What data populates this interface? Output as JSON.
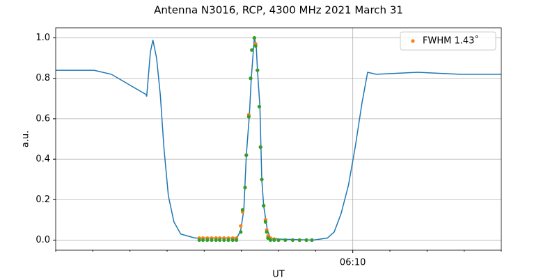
{
  "chart_data": {
    "type": "line",
    "title": "Antenna N3016, RCP, 4300 MHz 2021 March 31",
    "x_label": "UT",
    "y_label": "a.u.",
    "xlim": [
      "06:02",
      "06:14"
    ],
    "xticks": [
      "06:10"
    ],
    "xminorticks": [
      "06:02",
      "06:03",
      "06:04",
      "06:05",
      "06:06",
      "06:07",
      "06:08",
      "06:09",
      "06:11",
      "06:12",
      "06:13",
      "06:14"
    ],
    "ylim": [
      -0.05,
      1.05
    ],
    "yticks": [
      {
        "value": 0,
        "label": "0.0"
      },
      0.2,
      0.4,
      0.6,
      0.8,
      {
        "value": 1,
        "label": "1.0"
      }
    ],
    "grid": true,
    "legend": "upper right",
    "series": [
      {
        "type": "line",
        "color": "#1f77b4",
        "x": [
          "06:02:00",
          "06:03:02",
          "06:03:30",
          "06:03:58",
          "06:04:26",
          "06:04:27",
          "06:04:33",
          "06:04:37",
          "06:04:43",
          "06:04:49",
          "06:04:55",
          "06:05:02",
          "06:05:11",
          "06:05:22",
          "06:05:45",
          "06:06:53",
          "06:06:59",
          "06:07:04",
          "06:07:08",
          "06:07:13",
          "06:07:16",
          "06:07:21",
          "06:07:24",
          "06:07:26",
          "06:07:30",
          "06:07:33",
          "06:07:36",
          "06:07:40",
          "06:07:42",
          "06:07:47",
          "06:08:00",
          "06:08:56",
          "06:09:19",
          "06:09:30",
          "06:09:41",
          "06:09:53",
          "06:10:04",
          "06:10:15",
          "06:10:24",
          "06:10:38",
          "06:11:45",
          "06:12:53",
          "06:14:00"
        ],
        "values": [
          0.84,
          0.84,
          0.82,
          0.77,
          0.72,
          0.71,
          0.93,
          0.99,
          0.9,
          0.72,
          0.45,
          0.22,
          0.09,
          0.03,
          0.01,
          0.01,
          0.05,
          0.15,
          0.42,
          0.62,
          0.8,
          1.0,
          0.96,
          0.84,
          0.66,
          0.3,
          0.17,
          0.09,
          0.05,
          0.01,
          0.005,
          0,
          0.01,
          0.04,
          0.13,
          0.27,
          0.46,
          0.68,
          0.83,
          0.82,
          0.83,
          0.82,
          0.82
        ]
      },
      {
        "type": "scatter",
        "name": "FWHM 1.43˚",
        "color": "#ff7f0e",
        "x": [
          "06:05:52",
          "06:05:58",
          "06:06:05",
          "06:06:12",
          "06:06:19",
          "06:06:25",
          "06:06:32",
          "06:06:39",
          "06:06:46",
          "06:06:52",
          "06:06:59",
          "06:07:02",
          "06:07:06",
          "06:07:08",
          "06:07:12",
          "06:07:15",
          "06:07:17",
          "06:07:21",
          "06:07:23",
          "06:07:26",
          "06:07:29",
          "06:07:31",
          "06:07:33",
          "06:07:36",
          "06:07:39",
          "06:07:41",
          "06:07:43",
          "06:07:47",
          "06:07:53",
          "06:08:00",
          "06:08:11",
          "06:08:23",
          "06:08:34",
          "06:08:45",
          "06:08:54"
        ],
        "values": [
          0.01,
          0.01,
          0.01,
          0.01,
          0.01,
          0.01,
          0.01,
          0.01,
          0.01,
          0.01,
          0.07,
          0.14,
          0.26,
          0.42,
          0.62,
          0.8,
          0.94,
          1.0,
          0.97,
          0.84,
          0.66,
          0.46,
          0.3,
          0.17,
          0.1,
          0.05,
          0.02,
          0.01,
          0.005,
          0,
          0,
          0,
          0,
          0,
          0
        ]
      },
      {
        "type": "scatter",
        "color": "#2ca02c",
        "x": [
          "06:05:52",
          "06:05:58",
          "06:06:05",
          "06:06:12",
          "06:06:19",
          "06:06:25",
          "06:06:32",
          "06:06:39",
          "06:06:46",
          "06:06:52",
          "06:06:59",
          "06:07:02",
          "06:07:06",
          "06:07:08",
          "06:07:12",
          "06:07:15",
          "06:07:17",
          "06:07:21",
          "06:07:23",
          "06:07:26",
          "06:07:29",
          "06:07:31",
          "06:07:33",
          "06:07:36",
          "06:07:39",
          "06:07:41",
          "06:07:43",
          "06:07:47",
          "06:07:53",
          "06:08:00",
          "06:08:11",
          "06:08:23",
          "06:08:34",
          "06:08:45",
          "06:08:54"
        ],
        "values": [
          0,
          0,
          0,
          0,
          0,
          0,
          0,
          0,
          0,
          0,
          0.04,
          0.15,
          0.26,
          0.42,
          0.61,
          0.8,
          0.94,
          1.0,
          0.96,
          0.84,
          0.66,
          0.46,
          0.3,
          0.17,
          0.09,
          0.04,
          0.01,
          0,
          0,
          0,
          0,
          0,
          0,
          0,
          0
        ]
      }
    ]
  }
}
